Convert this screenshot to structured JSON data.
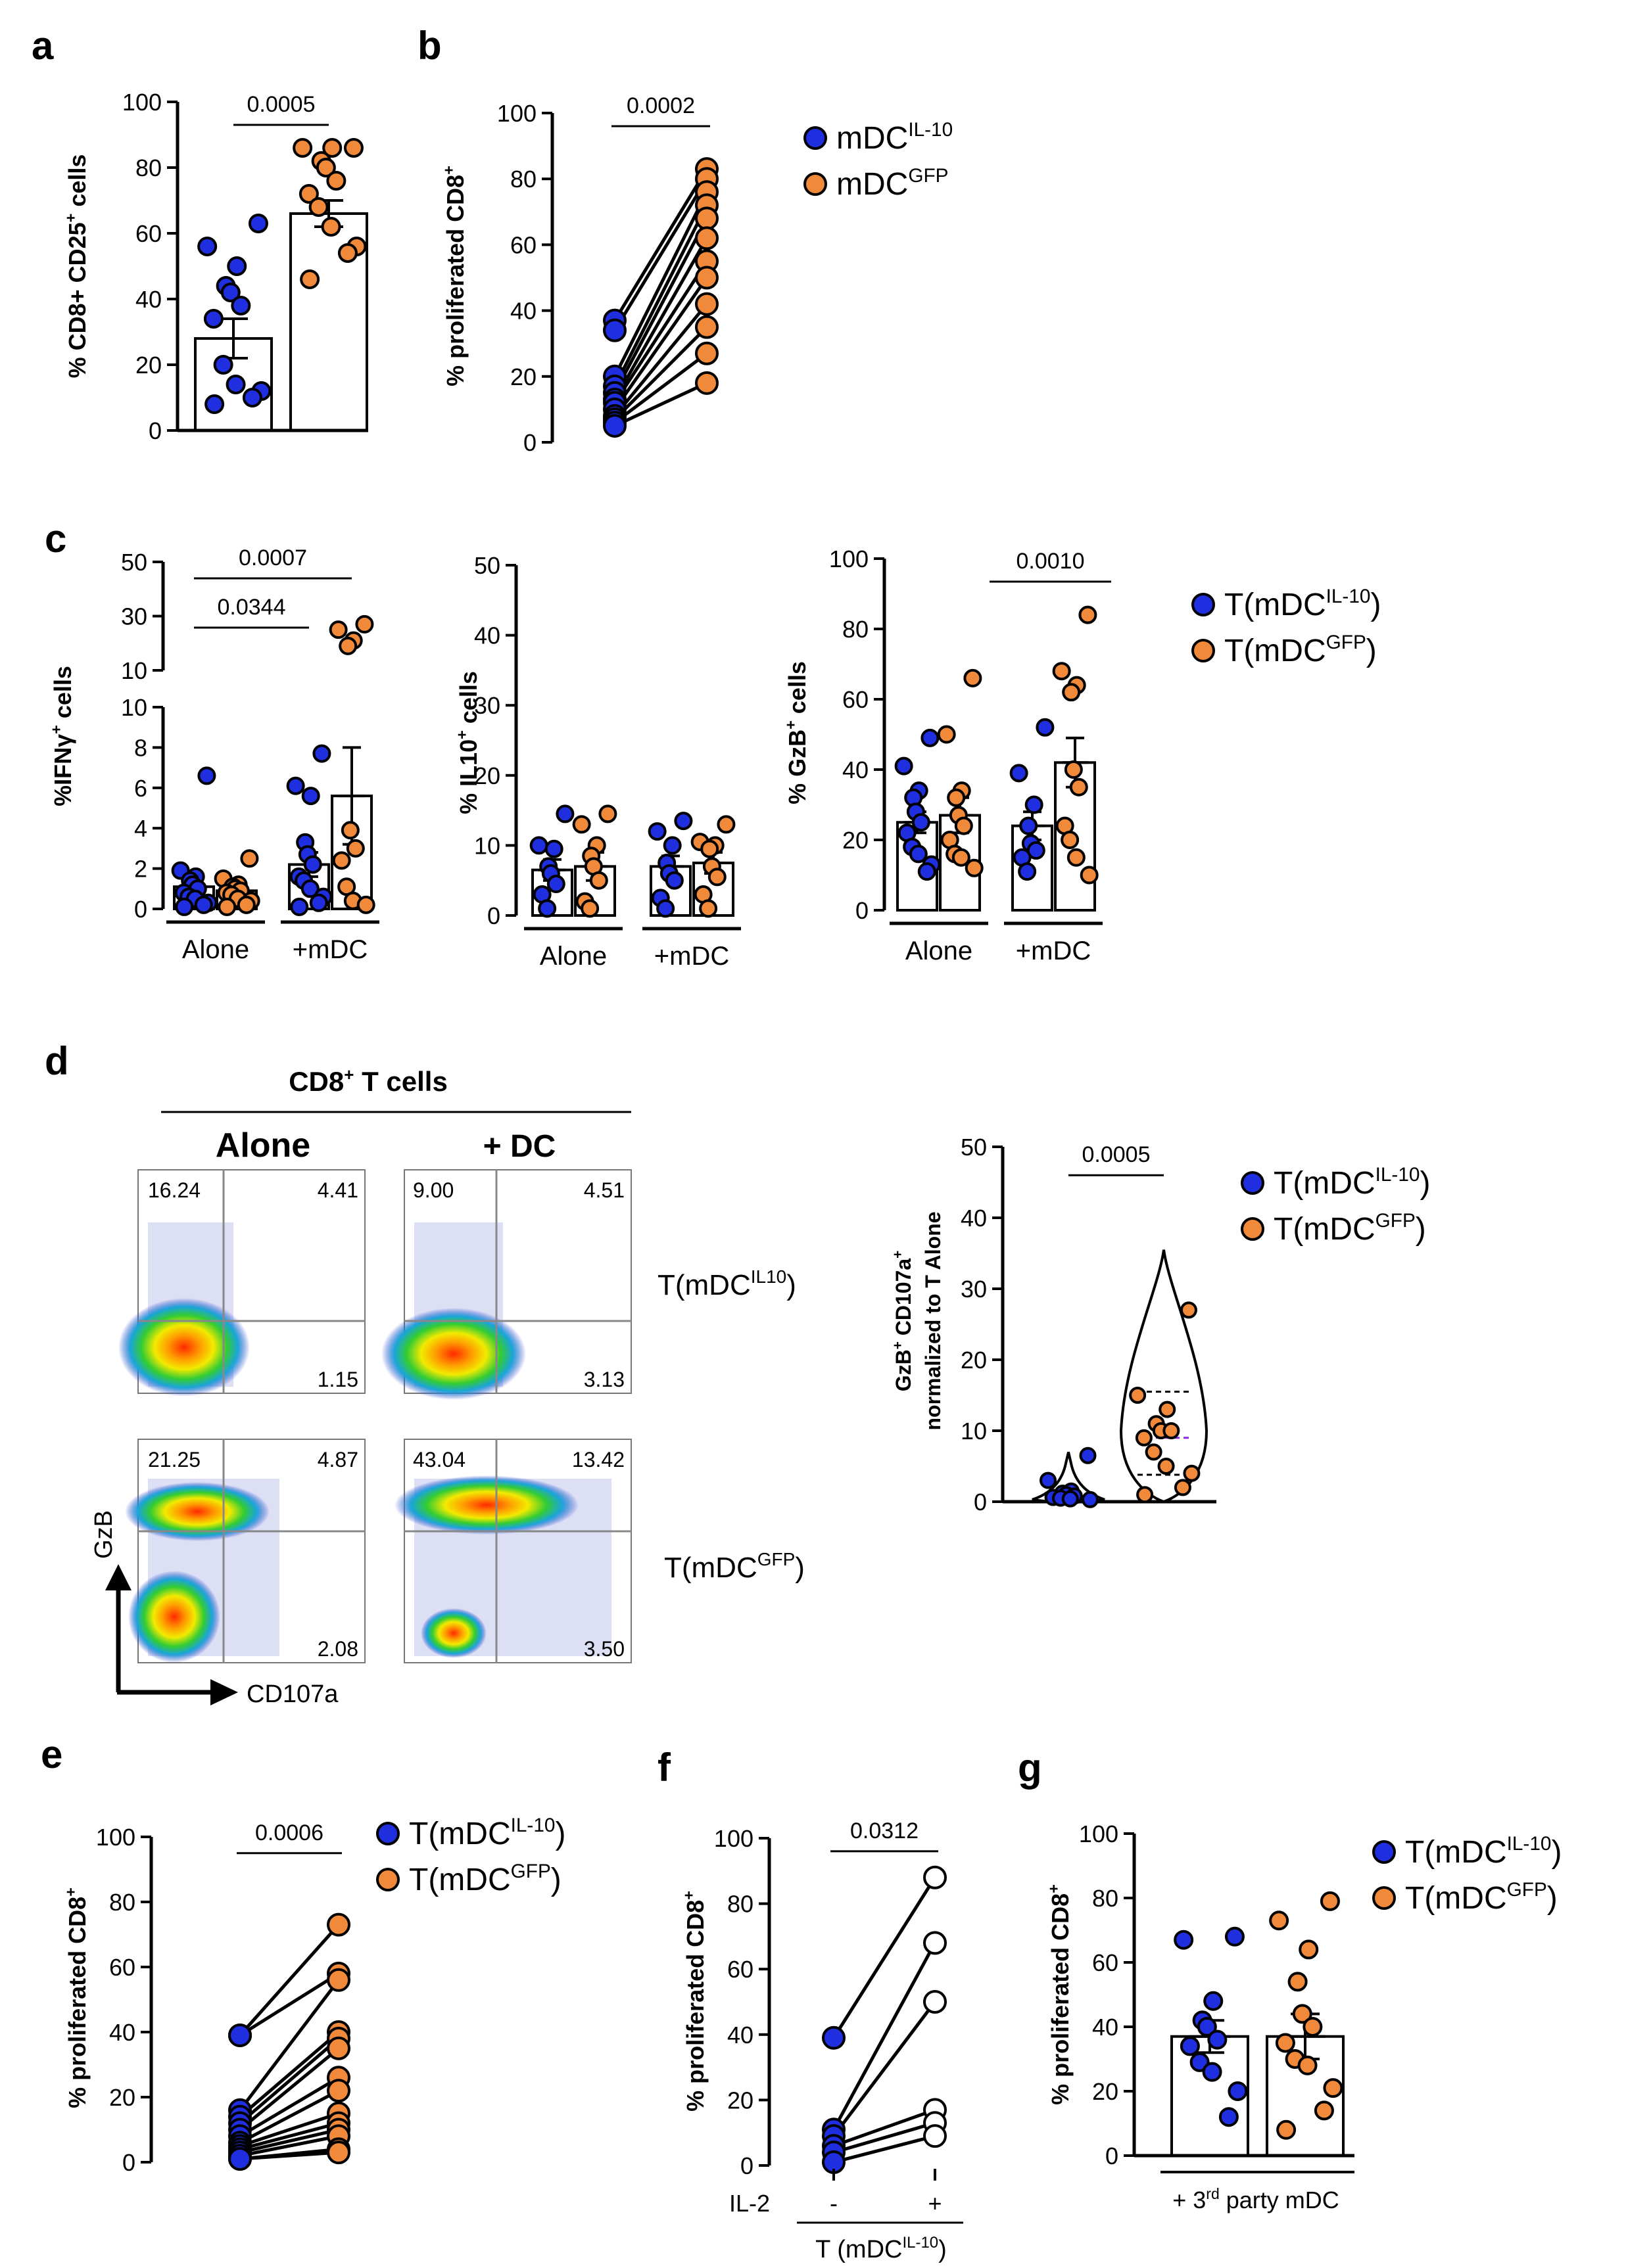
{
  "colors": {
    "blue": "#1f2fe0",
    "orange": "#f08a3a",
    "black": "#000000",
    "white": "#ffffff"
  },
  "panel_letters": [
    "a",
    "b",
    "c",
    "d",
    "e",
    "f",
    "g"
  ],
  "chart_data": [
    {
      "id": "a",
      "type": "bar",
      "ylabel_parts": [
        {
          "t": "% CD8+ CD25",
          "s": "n"
        },
        {
          "t": "+",
          "s": "sup"
        },
        {
          "t": " cells",
          "s": "n"
        }
      ],
      "ylim": [
        0,
        100
      ],
      "yticks": [
        0,
        20,
        40,
        60,
        80,
        100
      ],
      "categories": [
        "mDC IL-10",
        "mDC GFP"
      ],
      "series": [
        {
          "name": "mDC IL-10",
          "color": "blue",
          "mean": 28,
          "sem": 6,
          "points": [
            63,
            56,
            50,
            44,
            42,
            38,
            34,
            20,
            14,
            12,
            10,
            8
          ]
        },
        {
          "name": "mDC GFP",
          "color": "orange",
          "mean": 66,
          "sem": 4,
          "points": [
            86,
            86,
            86,
            82,
            80,
            76,
            72,
            68,
            62,
            56,
            54,
            46
          ]
        }
      ],
      "annotations": [
        {
          "text": "0.0005",
          "between": [
            0,
            1
          ],
          "y": 95
        }
      ]
    },
    {
      "id": "b",
      "type": "paired",
      "ylabel_parts": [
        {
          "t": "% proliferated CD8",
          "s": "n"
        },
        {
          "t": "+",
          "s": "sup"
        }
      ],
      "ylim": [
        0,
        100
      ],
      "yticks": [
        0,
        20,
        40,
        60,
        80,
        100
      ],
      "pairs": [
        [
          37,
          83
        ],
        [
          34,
          80
        ],
        [
          20,
          76
        ],
        [
          17,
          72
        ],
        [
          15,
          68
        ],
        [
          13,
          62
        ],
        [
          12,
          55
        ],
        [
          10,
          50
        ],
        [
          8,
          42
        ],
        [
          7,
          35
        ],
        [
          6,
          27
        ],
        [
          5,
          18
        ]
      ],
      "colors": [
        "blue",
        "orange"
      ],
      "annotations": [
        {
          "text": "0.0002",
          "between": [
            0,
            1
          ],
          "y": 96
        }
      ],
      "legend": [
        {
          "label": "mDC",
          "sup": "IL-10",
          "color": "blue"
        },
        {
          "label": "mDC",
          "sup": "GFP",
          "color": "orange"
        }
      ]
    },
    {
      "id": "c1",
      "type": "bar",
      "axis_break": true,
      "ylabel_parts": [
        {
          "t": "%IFN",
          "s": "n"
        },
        {
          "t": "γ",
          "s": "n"
        },
        {
          "t": "+",
          "s": "sup"
        },
        {
          "t": " cells",
          "s": "n"
        }
      ],
      "upper_ticks": [
        10,
        30,
        50
      ],
      "lower_ticks": [
        0,
        2,
        4,
        6,
        8,
        10
      ],
      "groups": [
        "Alone",
        "+mDC"
      ],
      "series": [
        {
          "group": 0,
          "color": "blue",
          "mean": 1.1,
          "sem": 0.5,
          "points": [
            6.6,
            1.9,
            1.6,
            1.4,
            1.2,
            1.0,
            0.8,
            0.6,
            0.5,
            0.3,
            0.2,
            0.1
          ]
        },
        {
          "group": 0,
          "color": "orange",
          "mean": 0.9,
          "sem": 0.2,
          "points": [
            2.5,
            1.5,
            1.2,
            1.1,
            1.0,
            0.9,
            0.8,
            0.7,
            0.5,
            0.4,
            0.2,
            0.1
          ]
        },
        {
          "group": 1,
          "color": "blue",
          "mean": 2.2,
          "sem": 0.6,
          "points": [
            7.7,
            6.1,
            5.6,
            3.3,
            2.7,
            2.2,
            1.6,
            1.4,
            1.0,
            0.6,
            0.3,
            0.1
          ]
        },
        {
          "group": 1,
          "color": "orange",
          "mean": 5.6,
          "sem": 2.4,
          "points": [
            27,
            25,
            21,
            19,
            3.9,
            3.0,
            2.4,
            1.1,
            0.4,
            0.2
          ]
        }
      ],
      "annotations": [
        {
          "text": "0.0007",
          "from": [
            0,
            0
          ],
          "to": [
            1,
            1
          ],
          "y": 36
        },
        {
          "text": "0.0344",
          "from": [
            0,
            0
          ],
          "to": [
            1,
            0
          ],
          "y": 22
        }
      ]
    },
    {
      "id": "c2",
      "type": "bar",
      "ylabel_parts": [
        {
          "t": "% IL10",
          "s": "n"
        },
        {
          "t": "+",
          "s": "sup"
        },
        {
          "t": " cells",
          "s": "n"
        }
      ],
      "ylim": [
        0,
        50
      ],
      "yticks": [
        0,
        10,
        20,
        30,
        40,
        50
      ],
      "groups": [
        "Alone",
        "+mDC"
      ],
      "series": [
        {
          "group": 0,
          "color": "blue",
          "mean": 6.5,
          "sem": 1.5,
          "points": [
            14.5,
            10.0,
            9.5,
            7.0,
            6.0,
            4.5,
            3.0,
            1.0
          ]
        },
        {
          "group": 0,
          "color": "orange",
          "mean": 7.0,
          "sem": 2.0,
          "points": [
            14.5,
            13.0,
            10.0,
            8.5,
            7.0,
            5.0,
            2.0,
            1.0
          ]
        },
        {
          "group": 1,
          "color": "blue",
          "mean": 7.0,
          "sem": 1.5,
          "points": [
            13.5,
            12.0,
            10.0,
            7.5,
            6.0,
            5.0,
            2.5,
            1.0
          ]
        },
        {
          "group": 1,
          "color": "orange",
          "mean": 7.5,
          "sem": 1.5,
          "points": [
            13.0,
            10.5,
            10.0,
            9.5,
            7.0,
            5.5,
            3.0,
            1.0
          ]
        }
      ]
    },
    {
      "id": "c3",
      "type": "bar",
      "ylabel_parts": [
        {
          "t": "% GzB",
          "s": "n"
        },
        {
          "t": "+",
          "s": "sup"
        },
        {
          "t": " cells",
          "s": "n"
        }
      ],
      "ylim": [
        0,
        100
      ],
      "yticks": [
        0,
        20,
        40,
        60,
        80,
        100
      ],
      "groups": [
        "Alone",
        "+mDC"
      ],
      "series": [
        {
          "group": 0,
          "color": "blue",
          "mean": 25,
          "sem": 3,
          "points": [
            49,
            41,
            34,
            32,
            28,
            25,
            22,
            18,
            16,
            13,
            11
          ]
        },
        {
          "group": 0,
          "color": "orange",
          "mean": 27,
          "sem": 5,
          "points": [
            66,
            50,
            34,
            32,
            27,
            24,
            20,
            16,
            15,
            12
          ]
        },
        {
          "group": 1,
          "color": "blue",
          "mean": 24,
          "sem": 4,
          "points": [
            52,
            39,
            30,
            24,
            19,
            17,
            15,
            11
          ]
        },
        {
          "group": 1,
          "color": "orange",
          "mean": 42,
          "sem": 7,
          "points": [
            84,
            68,
            64,
            62,
            40,
            35,
            24,
            20,
            15,
            10
          ]
        }
      ],
      "annotations": [
        {
          "text": "0.0010",
          "from": [
            1,
            0
          ],
          "to": [
            1,
            1
          ],
          "y": 96
        }
      ],
      "legend": [
        {
          "label": "T(mDC",
          "sup": "IL-10",
          "close": ")",
          "color": "blue"
        },
        {
          "label": "T(mDC",
          "sup": "GFP",
          "close": ")",
          "color": "orange"
        }
      ]
    },
    {
      "id": "d_violin",
      "type": "violin",
      "ylabel_line1": [
        {
          "t": "GzB",
          "s": "n"
        },
        {
          "t": "+",
          "s": "sup"
        },
        {
          "t": " CD107a",
          "s": "n"
        },
        {
          "t": "+",
          "s": "sup"
        }
      ],
      "ylabel_line2": "normalized to T Alone",
      "ylim": [
        0,
        50
      ],
      "yticks": [
        0,
        10,
        20,
        30,
        40,
        50
      ],
      "series": [
        {
          "name": "T(mDC IL-10)",
          "color": "blue",
          "points": [
            6.5,
            3.0,
            1.5,
            1.2,
            1.0,
            0.8,
            0.6,
            0.5,
            0.4,
            0.3
          ]
        },
        {
          "name": "T(mDC GFP)",
          "color": "orange",
          "points": [
            27,
            15,
            13,
            11,
            10,
            10,
            9,
            7,
            5,
            4,
            2,
            1
          ],
          "median": 9,
          "q1": 3.8,
          "q3": 15.5
        }
      ],
      "annotations": [
        {
          "text": "0.0005",
          "between": [
            0,
            1
          ],
          "y": 46
        }
      ],
      "legend": [
        {
          "label": "T(mDC",
          "sup": "IL-10",
          "close": ")",
          "color": "blue"
        },
        {
          "label": "T(mDC",
          "sup": "GFP",
          "close": ")",
          "color": "orange"
        }
      ]
    },
    {
      "id": "e",
      "type": "paired",
      "ylabel_parts": [
        {
          "t": "% proliferated CD8",
          "s": "n"
        },
        {
          "t": "+",
          "s": "sup"
        }
      ],
      "ylim": [
        0,
        100
      ],
      "yticks": [
        0,
        20,
        40,
        60,
        80,
        100
      ],
      "pairs": [
        [
          39,
          73
        ],
        [
          39,
          58
        ],
        [
          16,
          56
        ],
        [
          14,
          40
        ],
        [
          12,
          38
        ],
        [
          10,
          35
        ],
        [
          8,
          26
        ],
        [
          6,
          22
        ],
        [
          5,
          15
        ],
        [
          4,
          12
        ],
        [
          3,
          10
        ],
        [
          2,
          8
        ],
        [
          1,
          4
        ],
        [
          1,
          3
        ]
      ],
      "colors": [
        "blue",
        "orange"
      ],
      "annotations": [
        {
          "text": "0.0006",
          "between": [
            0,
            1
          ],
          "y": 95
        }
      ],
      "legend": [
        {
          "label": "T(mDC",
          "sup": "IL-10",
          "close": ")",
          "color": "blue"
        },
        {
          "label": "T(mDC",
          "sup": "GFP",
          "close": ")",
          "color": "orange"
        }
      ]
    },
    {
      "id": "f",
      "type": "paired",
      "ylabel_parts": [
        {
          "t": "% proliferated CD8",
          "s": "n"
        },
        {
          "t": "+",
          "s": "sup"
        }
      ],
      "ylim": [
        0,
        100
      ],
      "yticks": [
        0,
        20,
        40,
        60,
        80,
        100
      ],
      "pairs": [
        [
          39,
          88
        ],
        [
          11,
          68
        ],
        [
          9,
          50
        ],
        [
          6,
          17
        ],
        [
          4,
          13
        ],
        [
          1,
          9
        ]
      ],
      "colors": [
        "blue",
        "white"
      ],
      "xticks": [
        "-",
        "+"
      ],
      "xrow_label": "IL-2",
      "group_label": "T (mDC",
      "group_sup": "IL-10",
      "group_close": ")",
      "annotations": [
        {
          "text": "0.0312",
          "between": [
            0,
            1
          ],
          "y": 96
        }
      ]
    },
    {
      "id": "g",
      "type": "bar",
      "ylabel_parts": [
        {
          "t": "% proliferated CD8",
          "s": "n"
        },
        {
          "t": "+",
          "s": "sup"
        }
      ],
      "ylim": [
        0,
        100
      ],
      "yticks": [
        0,
        20,
        40,
        60,
        80,
        100
      ],
      "group_label_pre": "+ 3",
      "group_label_sup": "rd",
      "group_label_post": " party mDC",
      "series": [
        {
          "color": "blue",
          "mean": 37,
          "sem": 5,
          "points": [
            68,
            67,
            48,
            42,
            40,
            36,
            34,
            29,
            26,
            20,
            12
          ]
        },
        {
          "color": "orange",
          "mean": 37,
          "sem": 7,
          "points": [
            79,
            73,
            64,
            54,
            44,
            40,
            35,
            30,
            28,
            21,
            14,
            8
          ]
        }
      ],
      "legend": [
        {
          "label": "T(mDC",
          "sup": "IL-10",
          "close": ")",
          "color": "blue"
        },
        {
          "label": "T(mDC",
          "sup": "GFP",
          "close": ")",
          "color": "orange"
        }
      ]
    }
  ],
  "flow": {
    "header_pre": "CD8",
    "header_sup": "+",
    "header_post": " T cells",
    "col_alone": "Alone",
    "col_dc": "+ DC",
    "row1_label": "T(mDC",
    "row1_sup": "IL10",
    "row1_close": ")",
    "row2_label": "T(mDC",
    "row2_sup": "GFP",
    "row2_close": ")",
    "y_axis": "GzB",
    "x_axis": "CD107a",
    "plots": [
      {
        "tl": "16.24",
        "tr": "4.41",
        "br": "1.15"
      },
      {
        "tl": "9.00",
        "tr": "4.51",
        "br": "3.13"
      },
      {
        "tl": "21.25",
        "tr": "4.87",
        "br": "2.08"
      },
      {
        "tl": "43.04",
        "tr": "13.42",
        "br": "3.50"
      }
    ]
  }
}
